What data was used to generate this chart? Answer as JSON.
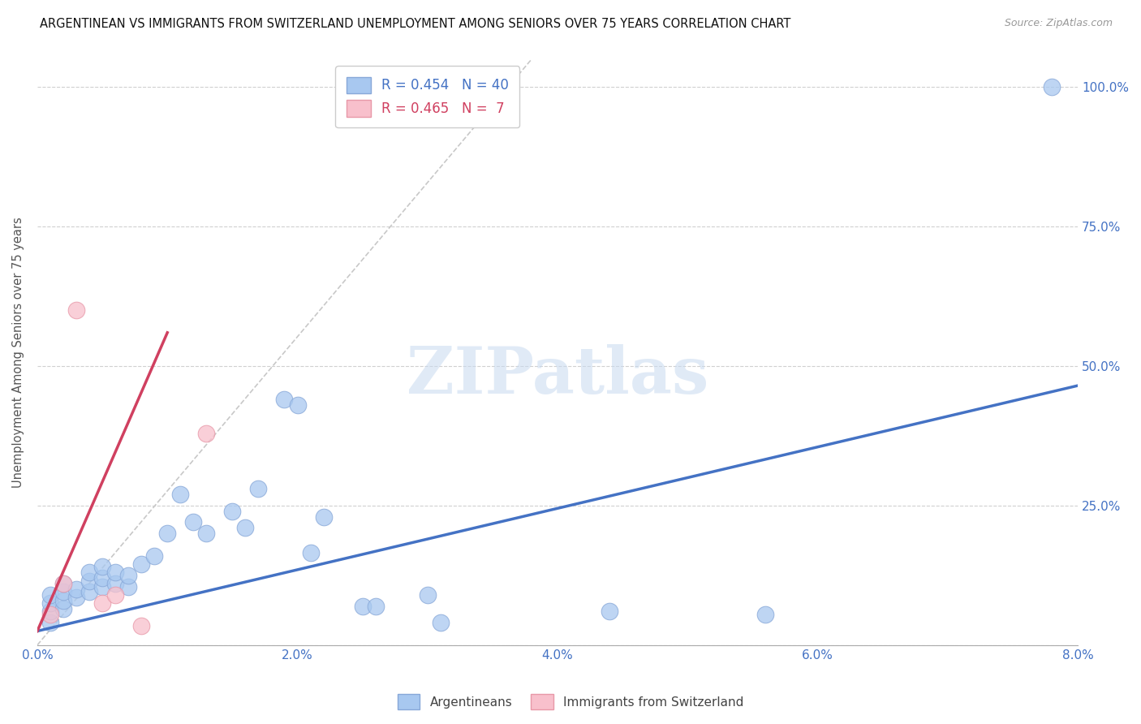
{
  "title": "ARGENTINEAN VS IMMIGRANTS FROM SWITZERLAND UNEMPLOYMENT AMONG SENIORS OVER 75 YEARS CORRELATION CHART",
  "source": "Source: ZipAtlas.com",
  "ylabel": "Unemployment Among Seniors over 75 years",
  "xlim": [
    0.0,
    0.08
  ],
  "ylim": [
    0.0,
    1.05
  ],
  "xticks": [
    0.0,
    0.02,
    0.04,
    0.06,
    0.08
  ],
  "xtick_labels": [
    "0.0%",
    "2.0%",
    "4.0%",
    "6.0%",
    "8.0%"
  ],
  "yticks": [
    0.0,
    0.25,
    0.5,
    0.75,
    1.0
  ],
  "ytick_labels": [
    "",
    "25.0%",
    "50.0%",
    "75.0%",
    "100.0%"
  ],
  "blue_color": "#A8C8F0",
  "blue_edge": "#88A8D8",
  "blue_dark": "#4472C4",
  "pink_color": "#F8C0CC",
  "pink_edge": "#E898A8",
  "pink_dark": "#D04060",
  "watermark_text": "ZIPatlas",
  "legend_line1": "R = 0.454   N = 40",
  "legend_line2": "R = 0.465   N =  7",
  "argentinean_x": [
    0.001,
    0.001,
    0.001,
    0.001,
    0.002,
    0.002,
    0.002,
    0.002,
    0.003,
    0.003,
    0.004,
    0.004,
    0.004,
    0.005,
    0.005,
    0.005,
    0.006,
    0.006,
    0.007,
    0.007,
    0.008,
    0.009,
    0.01,
    0.011,
    0.012,
    0.013,
    0.015,
    0.016,
    0.017,
    0.019,
    0.02,
    0.021,
    0.022,
    0.025,
    0.026,
    0.03,
    0.031,
    0.044,
    0.056,
    0.078
  ],
  "argentinean_y": [
    0.04,
    0.06,
    0.075,
    0.09,
    0.065,
    0.08,
    0.095,
    0.11,
    0.085,
    0.1,
    0.095,
    0.115,
    0.13,
    0.105,
    0.12,
    0.14,
    0.11,
    0.13,
    0.105,
    0.125,
    0.145,
    0.16,
    0.2,
    0.27,
    0.22,
    0.2,
    0.24,
    0.21,
    0.28,
    0.44,
    0.43,
    0.165,
    0.23,
    0.07,
    0.07,
    0.09,
    0.04,
    0.06,
    0.055,
    1.0
  ],
  "swiss_x": [
    0.001,
    0.002,
    0.003,
    0.005,
    0.006,
    0.008,
    0.013
  ],
  "swiss_y": [
    0.055,
    0.11,
    0.6,
    0.075,
    0.09,
    0.035,
    0.38
  ],
  "blue_line_x": [
    0.0,
    0.08
  ],
  "blue_line_y": [
    0.025,
    0.465
  ],
  "pink_line_x": [
    0.0,
    0.01
  ],
  "pink_line_y": [
    0.025,
    0.56
  ],
  "ref_line_x": [
    0.0,
    0.038
  ],
  "ref_line_y": [
    0.0,
    1.05
  ]
}
